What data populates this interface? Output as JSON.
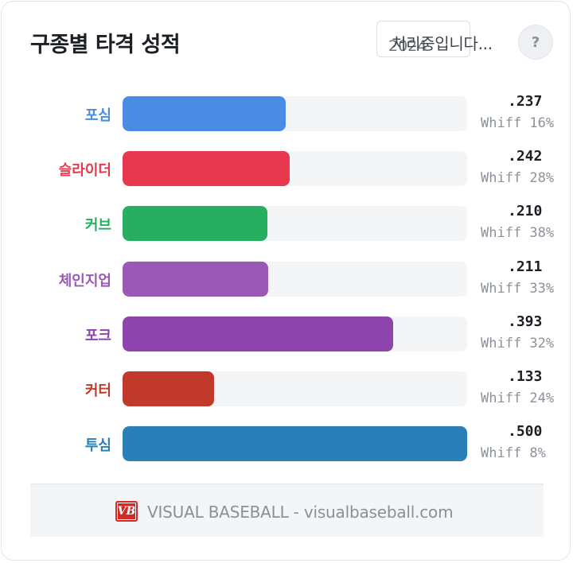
{
  "header": {
    "title": "구종별 타격 성적",
    "season_value": "2024",
    "loading_text": "처리중입니다...",
    "help_label": "?"
  },
  "pitches": [
    {
      "name": "포심",
      "avg": ".237",
      "whiff": "Whiff 16%",
      "avg_value": 0.237,
      "color": "#4a8be3"
    },
    {
      "name": "슬라이더",
      "avg": ".242",
      "whiff": "Whiff 28%",
      "avg_value": 0.242,
      "color": "#e8384f"
    },
    {
      "name": "커브",
      "avg": ".210",
      "whiff": "Whiff 38%",
      "avg_value": 0.21,
      "color": "#27ae60"
    },
    {
      "name": "체인지업",
      "avg": ".211",
      "whiff": "Whiff 33%",
      "avg_value": 0.211,
      "color": "#9b59b6"
    },
    {
      "name": "포크",
      "avg": ".393",
      "whiff": "Whiff 32%",
      "avg_value": 0.393,
      "color": "#8e44ad"
    },
    {
      "name": "커터",
      "avg": ".133",
      "whiff": "Whiff 24%",
      "avg_value": 0.133,
      "color": "#c0392b"
    },
    {
      "name": "투심",
      "avg": ".500",
      "whiff": "Whiff 8%",
      "avg_value": 0.5,
      "color": "#2980b9"
    }
  ],
  "scale_max": 0.5,
  "footer": {
    "logo_text": "VB",
    "text": "VISUAL BASEBALL - visualbaseball.com"
  }
}
